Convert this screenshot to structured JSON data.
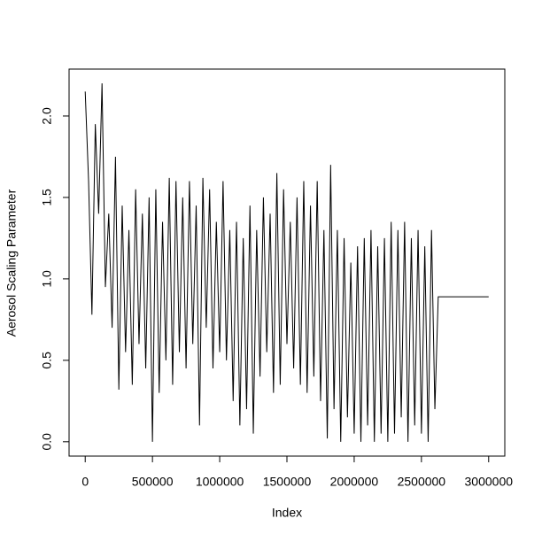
{
  "chart_data": {
    "type": "line",
    "x_label": "Index",
    "y_label": "Aerosol Scaling Parameter",
    "color": "#000000",
    "x": [
      0,
      25000,
      50000,
      75000,
      100000,
      125000,
      150000,
      175000,
      200000,
      225000,
      250000,
      275000,
      300000,
      325000,
      350000,
      375000,
      400000,
      425000,
      450000,
      475000,
      500000,
      525000,
      550000,
      575000,
      600000,
      625000,
      650000,
      675000,
      700000,
      725000,
      750000,
      775000,
      800000,
      825000,
      850000,
      875000,
      900000,
      925000,
      950000,
      975000,
      1000000,
      1025000,
      1050000,
      1075000,
      1100000,
      1125000,
      1150000,
      1175000,
      1200000,
      1225000,
      1250000,
      1275000,
      1300000,
      1325000,
      1350000,
      1375000,
      1400000,
      1425000,
      1450000,
      1475000,
      1500000,
      1525000,
      1550000,
      1575000,
      1600000,
      1625000,
      1650000,
      1675000,
      1700000,
      1725000,
      1750000,
      1775000,
      1800000,
      1825000,
      1850000,
      1875000,
      1900000,
      1925000,
      1950000,
      1975000,
      2000000,
      2025000,
      2050000,
      2075000,
      2100000,
      2125000,
      2150000,
      2175000,
      2200000,
      2225000,
      2250000,
      2275000,
      2300000,
      2325000,
      2350000,
      2375000,
      2400000,
      2425000,
      2450000,
      2475000,
      2500000,
      2525000,
      2550000,
      2575000,
      2600000,
      2625000,
      3000000
    ],
    "values": [
      2.15,
      1.6,
      0.78,
      1.95,
      1.4,
      2.2,
      0.95,
      1.4,
      0.7,
      1.75,
      0.32,
      1.45,
      0.55,
      1.3,
      0.35,
      1.55,
      0.6,
      1.4,
      0.45,
      1.5,
      0.0,
      1.55,
      0.3,
      1.35,
      0.5,
      1.62,
      0.35,
      1.6,
      0.55,
      1.5,
      0.45,
      1.6,
      0.6,
      1.45,
      0.1,
      1.62,
      0.7,
      1.55,
      0.45,
      1.35,
      0.55,
      1.6,
      0.5,
      1.3,
      0.25,
      1.35,
      0.1,
      1.25,
      0.2,
      1.45,
      0.05,
      1.3,
      0.4,
      1.5,
      0.55,
      1.4,
      0.3,
      1.65,
      0.35,
      1.55,
      0.6,
      1.35,
      0.45,
      1.5,
      0.35,
      1.6,
      0.3,
      1.45,
      0.4,
      1.6,
      0.25,
      1.3,
      0.02,
      1.7,
      0.2,
      1.3,
      0.0,
      1.25,
      0.15,
      1.1,
      0.05,
      1.2,
      0.0,
      1.25,
      0.1,
      1.3,
      0.0,
      1.2,
      0.05,
      1.25,
      0.0,
      1.35,
      0.05,
      1.3,
      0.15,
      1.35,
      0.0,
      1.25,
      0.1,
      1.3,
      0.05,
      1.2,
      0.0,
      1.3,
      0.2,
      0.89,
      0.89
    ],
    "xlim": [
      -120000,
      3120000
    ],
    "ylim": [
      -0.088,
      2.288
    ],
    "xticks": [
      0,
      500000,
      1000000,
      1500000,
      2000000,
      2500000,
      3000000
    ],
    "yticks": [
      {
        "value": 0,
        "label": "0.0"
      },
      0.5,
      {
        "value": 1,
        "label": "1.0"
      },
      1.5,
      {
        "value": 2,
        "label": "2.0"
      }
    ]
  }
}
